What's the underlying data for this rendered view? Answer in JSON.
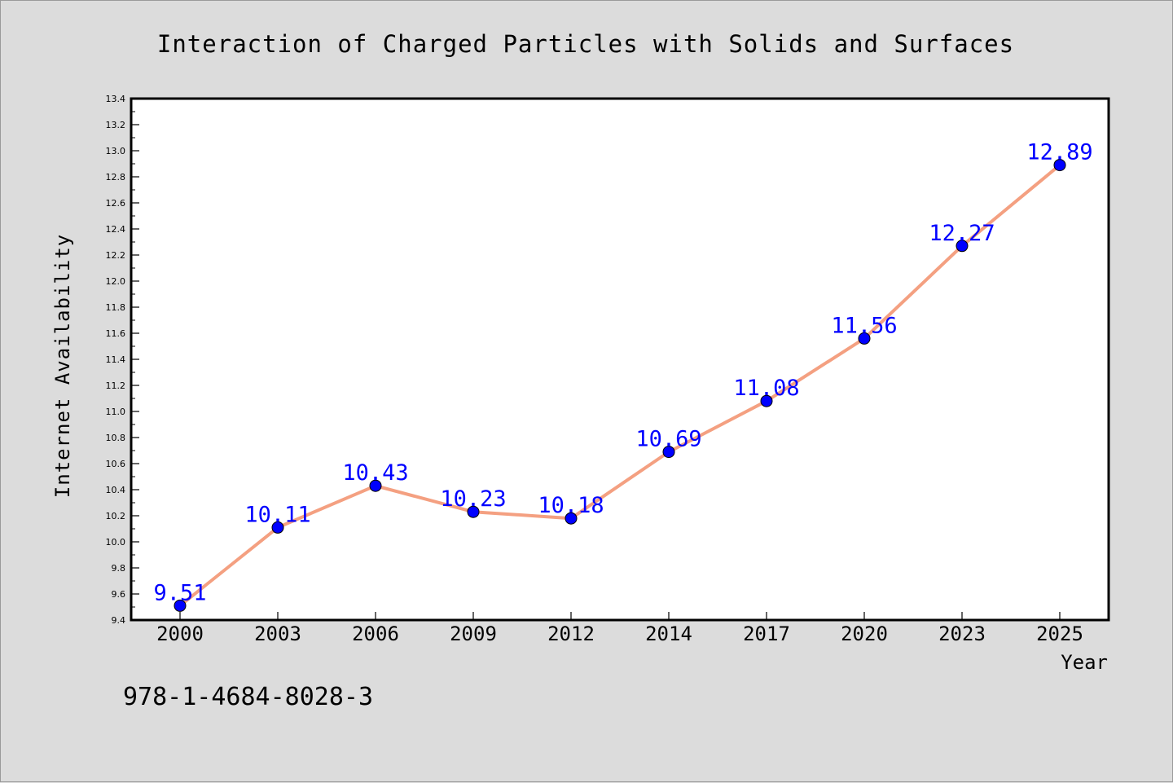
{
  "chart_data": {
    "type": "line",
    "title": "Interaction of Charged Particles with Solids and Surfaces",
    "xlabel": "Year",
    "ylabel": "Internet Availability",
    "categories": [
      "2000",
      "2003",
      "2006",
      "2009",
      "2012",
      "2014",
      "2017",
      "2020",
      "2023",
      "2025"
    ],
    "series": [
      {
        "values": [
          9.51,
          10.11,
          10.43,
          10.23,
          10.18,
          10.69,
          11.08,
          11.56,
          12.27,
          12.89
        ],
        "data_labels": [
          "9.51",
          "10.11",
          "10.43",
          "10.23",
          "10.18",
          "10.69",
          "11.08",
          "11.56",
          "12.27",
          "12.89"
        ]
      }
    ],
    "ylim": [
      9.4,
      13.4
    ],
    "yticks": [
      "9.4",
      "9.6",
      "9.8",
      "10.0",
      "10.2",
      "10.4",
      "10.6",
      "10.8",
      "11.0",
      "11.2",
      "11.4",
      "11.6",
      "11.8",
      "12.0",
      "12.2",
      "12.4",
      "12.6",
      "12.8",
      "13.0",
      "13.2",
      "13.4"
    ],
    "grid": false,
    "colors": {
      "line": "#f4a081",
      "marker": "#0000ff",
      "data_label": "#0000ff",
      "axes": "#000000",
      "plot_background": "#ffffff",
      "figure_background": "#dcdcdc"
    }
  },
  "footer": {
    "isbn": "978-1-4684-8028-3"
  }
}
